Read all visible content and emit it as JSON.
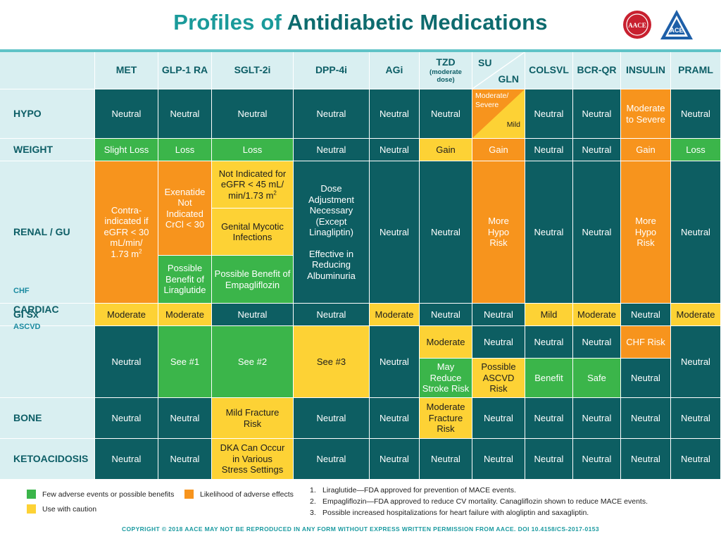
{
  "title": {
    "part1": "Profiles of",
    "part2": "Antidiabetic Medications"
  },
  "logos": {
    "aace": "AACE",
    "ace": "ACE"
  },
  "colors": {
    "neutral": "#0d5e62",
    "green": "#3bb54a",
    "orange": "#f7941d",
    "yellow": "#fdd235",
    "header_bg": "#d9eff1",
    "title_teal": "#1a9a9a"
  },
  "columns": {
    "met": "MET",
    "glp1": "GLP-1 RA",
    "sglt2": "SGLT-2i",
    "dpp4": "DPP-4i",
    "agi": "AGi",
    "tzd": "TZD",
    "tzd_sub": "(moderate dose)",
    "su": "SU",
    "gln": "GLN",
    "colsvl": "COLSVL",
    "bcrqr": "BCR-QR",
    "insulin": "INSULIN",
    "praml": "PRAML"
  },
  "rows": {
    "hypo": "HYPO",
    "weight": "WEIGHT",
    "renal": "RENAL / GU",
    "gi": "GI Sx",
    "cardiac": "CARDIAC",
    "chf": "CHF",
    "ascvd": "ASCVD",
    "bone": "BONE",
    "keto": "KETOACIDOSIS"
  },
  "cells": {
    "neutral": "Neutral",
    "hypo_su_top": "Moderate/ Severe",
    "hypo_su_bottom": "Mild",
    "hypo_insulin": "Moderate to Severe",
    "weight_met": "Slight Loss",
    "weight_glp1": "Loss",
    "weight_sglt2": "Loss",
    "weight_tzd": "Gain",
    "weight_su": "Gain",
    "weight_insulin": "Gain",
    "weight_praml": "Loss",
    "renal_met": "Contra-indicated if eGFR < 30 mL/min/ 1.73 m",
    "renal_glp1_top": "Exenatide Not Indicated CrCl < 30",
    "renal_glp1_bottom": "Possible Benefit of Liraglutide",
    "renal_sglt2_1": "Not Indicated for eGFR < 45 mL/ min/1.73 m",
    "renal_sglt2_2": "Genital Mycotic Infections",
    "renal_sglt2_3": "Possible Benefit of Empagliflozin",
    "renal_dpp4": "Dose Adjustment Necessary (Except Linagliptin)",
    "renal_dpp4_2": "Effective in Reducing Albuminuria",
    "renal_su": "More Hypo Risk",
    "renal_insulin": "More Hypo Risk",
    "sup2": "2",
    "gi_met": "Moderate",
    "gi_glp1": "Moderate",
    "gi_agi": "Moderate",
    "gi_colsvl": "Mild",
    "gi_bcrqr": "Moderate",
    "gi_praml": "Moderate",
    "card_glp1": "See #1",
    "card_sglt2": "See #2",
    "card_dpp4": "See #3",
    "chf_tzd": "Moderate",
    "chf_insulin": "CHF Risk",
    "ascvd_tzd": "May Reduce Stroke Risk",
    "ascvd_su": "Possible ASCVD Risk",
    "ascvd_colsvl": "Benefit",
    "ascvd_bcrqr": "Safe",
    "bone_sglt2": "Mild Fracture Risk",
    "bone_tzd": "Moderate Fracture Risk",
    "keto_sglt2": "DKA Can Occur in Various Stress Settings"
  },
  "legend": {
    "green": "Few adverse events or possible benefits",
    "orange": "Likelihood of adverse effects",
    "yellow": "Use with caution"
  },
  "notes": [
    {
      "num": "1.",
      "text": "Liraglutide—FDA approved for prevention of MACE events."
    },
    {
      "num": "2.",
      "text": "Empagliflozin—FDA approved to reduce CV mortality. Canagliflozin shown to reduce MACE events."
    },
    {
      "num": "3.",
      "text": "Possible increased hospitalizations for heart failure with alogliptin and saxagliptin."
    }
  ],
  "copyright": "COPYRIGHT © 2018 AACE  MAY NOT BE REPRODUCED IN ANY FORM WITHOUT EXPRESS WRITTEN PERMISSION FROM AACE.  DOI 10.4158/CS-2017-0153"
}
